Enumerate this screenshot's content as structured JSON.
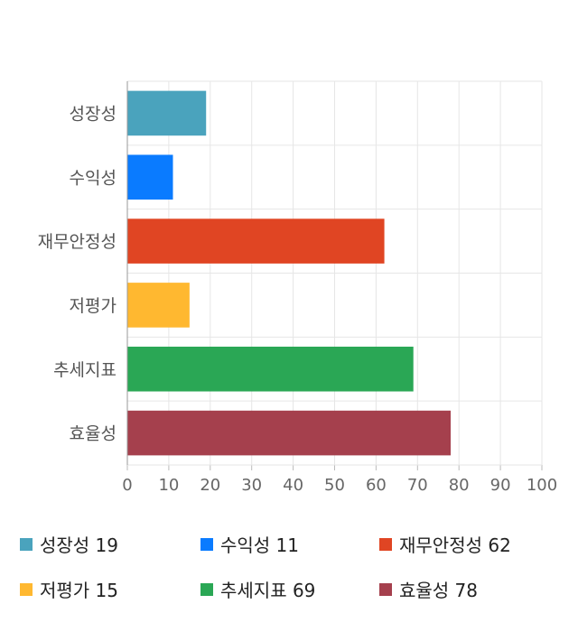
{
  "chart_data": {
    "type": "bar",
    "orientation": "horizontal",
    "categories": [
      "성장성",
      "수익성",
      "재무안정성",
      "저평가",
      "추세지표",
      "효율성"
    ],
    "values": [
      19,
      11,
      62,
      15,
      69,
      78
    ],
    "colors": [
      "#4aa3bd",
      "#0a7bff",
      "#e04523",
      "#ffb830",
      "#2aa755",
      "#a5404d"
    ],
    "xlim": [
      0,
      100
    ],
    "xticks": [
      "0",
      "10",
      "20",
      "30",
      "40",
      "50",
      "60",
      "70",
      "80",
      "90",
      "100"
    ],
    "grid": true,
    "legend_placement": "bottom"
  },
  "legend": [
    {
      "label": "성장성 19",
      "color": "#4aa3bd"
    },
    {
      "label": "수익성 11",
      "color": "#0a7bff"
    },
    {
      "label": "재무안정성 62",
      "color": "#e04523"
    },
    {
      "label": "저평가 15",
      "color": "#ffb830"
    },
    {
      "label": "추세지표 69",
      "color": "#2aa755"
    },
    {
      "label": "효율성 78",
      "color": "#a5404d"
    }
  ]
}
